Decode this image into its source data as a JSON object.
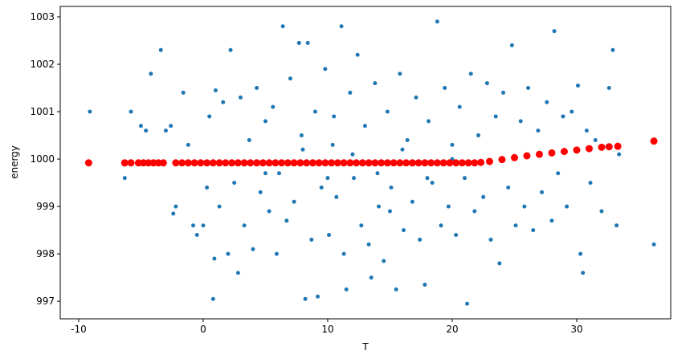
{
  "chart_data": {
    "type": "scatter",
    "xlabel": "T",
    "ylabel": "energy",
    "xlim": [
      -11.48,
      37.55
    ],
    "ylim": [
      996.63,
      1003.22
    ],
    "xticks": [
      -10,
      0,
      10,
      20,
      30
    ],
    "yticks": [
      997,
      998,
      999,
      1000,
      1001,
      1002,
      1003
    ],
    "series": [
      {
        "color": "#1f77b4",
        "marker_size": 5,
        "x": [
          -9.1,
          -6.3,
          -5.8,
          -5.0,
          -4.6,
          -4.2,
          -3.9,
          -3.4,
          -3.0,
          -2.6,
          -2.2,
          -2.4,
          -1.6,
          -1.2,
          -0.8,
          -0.5,
          0.0,
          0.3,
          0.5,
          0.8,
          0.9,
          1.0,
          1.3,
          1.6,
          2.0,
          2.2,
          2.5,
          2.8,
          3.0,
          3.3,
          3.7,
          4.0,
          4.3,
          4.6,
          5.0,
          5.3,
          5.6,
          5.9,
          6.1,
          6.4,
          6.7,
          7.0,
          7.3,
          7.7,
          7.9,
          8.2,
          8.4,
          8.7,
          9.0,
          9.2,
          9.5,
          9.8,
          10.1,
          10.4,
          10.7,
          11.1,
          11.3,
          11.5,
          11.8,
          12.1,
          12.4,
          12.7,
          13.0,
          13.3,
          13.5,
          13.8,
          14.1,
          14.5,
          14.8,
          15.1,
          15.5,
          15.8,
          16.1,
          16.4,
          16.8,
          17.1,
          17.4,
          17.8,
          18.1,
          18.4,
          18.8,
          19.1,
          19.4,
          19.7,
          20.0,
          20.3,
          20.6,
          21.0,
          21.2,
          21.5,
          21.8,
          22.1,
          22.5,
          22.8,
          23.1,
          23.5,
          23.8,
          24.1,
          24.5,
          24.8,
          25.1,
          25.5,
          25.8,
          26.1,
          26.5,
          26.9,
          27.2,
          27.6,
          28.0,
          28.2,
          28.5,
          28.9,
          29.2,
          29.6,
          30.1,
          30.3,
          30.5,
          30.8,
          31.1,
          31.5,
          32.0,
          32.6,
          32.9,
          33.2,
          33.4,
          36.2,
          5.0,
          8.0,
          10.0,
          12.0,
          14.0,
          16.0,
          18.0,
          20.0,
          10.5,
          15.0
        ],
        "values": [
          1001.0,
          999.6,
          1001.0,
          1000.7,
          1000.6,
          1001.8,
          999.9,
          1002.3,
          1000.6,
          1000.7,
          999.0,
          998.85,
          1001.4,
          1000.3,
          998.6,
          998.4,
          998.6,
          999.4,
          1000.9,
          997.05,
          997.9,
          1001.45,
          999.0,
          1001.2,
          998.0,
          1002.3,
          999.5,
          997.6,
          1001.3,
          998.6,
          1000.4,
          998.1,
          1001.5,
          999.3,
          1000.8,
          998.9,
          1001.1,
          998.0,
          999.7,
          1002.8,
          998.7,
          1001.7,
          999.1,
          1002.45,
          1000.5,
          997.05,
          1002.45,
          998.3,
          1001.0,
          997.1,
          999.4,
          1001.9,
          998.4,
          1000.3,
          999.2,
          1002.8,
          998.0,
          997.25,
          1001.4,
          999.6,
          1002.2,
          998.6,
          1000.7,
          998.2,
          997.5,
          1001.6,
          999.0,
          997.85,
          1001.0,
          999.4,
          997.25,
          1001.8,
          998.5,
          1000.4,
          999.1,
          1001.3,
          998.3,
          997.35,
          1000.8,
          999.5,
          1002.9,
          998.6,
          1001.5,
          999.0,
          1000.3,
          998.4,
          1001.1,
          999.6,
          996.95,
          1001.8,
          998.9,
          1000.5,
          999.2,
          1001.6,
          998.3,
          1000.9,
          997.8,
          1001.4,
          999.4,
          1002.4,
          998.6,
          1000.8,
          999.0,
          1001.5,
          998.5,
          1000.6,
          999.3,
          1001.2,
          998.7,
          1002.7,
          999.7,
          1000.9,
          999.0,
          1001.0,
          1001.55,
          998.0,
          997.6,
          1000.6,
          999.5,
          1000.4,
          998.9,
          1001.5,
          1002.3,
          998.6,
          1000.1,
          998.2,
          999.7,
          1000.2,
          999.6,
          1000.1,
          999.7,
          1000.2,
          999.6,
          1000.0,
          1000.9,
          998.9
        ]
      },
      {
        "color": "#ff0000",
        "marker_size": 9,
        "x": [
          -9.2,
          -6.3,
          -5.8,
          -5.2,
          -4.8,
          -4.4,
          -4.0,
          -3.6,
          -3.2,
          -2.2,
          -1.7,
          -1.2,
          -0.7,
          -0.2,
          0.3,
          0.8,
          1.3,
          1.8,
          2.3,
          2.8,
          3.3,
          3.8,
          4.3,
          4.8,
          5.3,
          5.8,
          6.3,
          6.8,
          7.3,
          7.8,
          8.3,
          8.8,
          9.3,
          9.8,
          10.3,
          10.8,
          11.3,
          11.8,
          12.3,
          12.8,
          13.3,
          13.8,
          14.3,
          14.8,
          15.3,
          15.8,
          16.3,
          16.8,
          17.3,
          17.8,
          18.3,
          18.8,
          19.3,
          19.8,
          20.3,
          20.8,
          21.3,
          21.8,
          22.3,
          23.0,
          24.0,
          25.0,
          26.0,
          27.0,
          28.0,
          29.0,
          30.0,
          31.0,
          32.0,
          32.6,
          33.3,
          36.2
        ],
        "values": [
          999.92,
          999.92,
          999.92,
          999.92,
          999.92,
          999.92,
          999.92,
          999.92,
          999.92,
          999.92,
          999.92,
          999.92,
          999.92,
          999.92,
          999.92,
          999.92,
          999.92,
          999.92,
          999.92,
          999.92,
          999.92,
          999.92,
          999.92,
          999.92,
          999.92,
          999.92,
          999.92,
          999.92,
          999.92,
          999.92,
          999.92,
          999.92,
          999.92,
          999.92,
          999.92,
          999.92,
          999.92,
          999.92,
          999.92,
          999.92,
          999.92,
          999.92,
          999.92,
          999.92,
          999.92,
          999.92,
          999.92,
          999.92,
          999.92,
          999.92,
          999.92,
          999.92,
          999.92,
          999.92,
          999.92,
          999.92,
          999.92,
          999.92,
          999.93,
          999.95,
          999.99,
          1000.03,
          1000.07,
          1000.1,
          1000.13,
          1000.16,
          1000.19,
          1000.22,
          1000.25,
          1000.26,
          1000.27,
          1000.38
        ]
      }
    ]
  }
}
